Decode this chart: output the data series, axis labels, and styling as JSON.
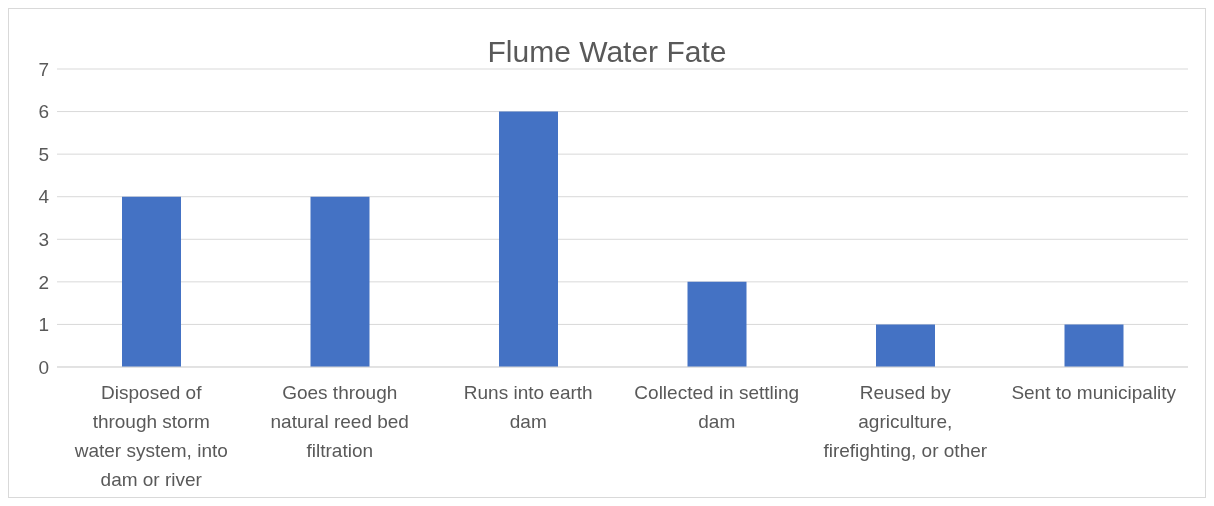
{
  "chart_data": {
    "type": "bar",
    "title": "Flume Water Fate",
    "categories": [
      "Disposed of through storm water system, into dam or river",
      "Goes through natural reed bed filtration",
      "Runs into earth dam",
      "Collected in settling dam",
      "Reused by agriculture, firefighting, or other",
      "Sent to municipality"
    ],
    "values": [
      4,
      4,
      6,
      2,
      1,
      1
    ],
    "color": "#4472c4",
    "ylim": [
      0,
      7
    ],
    "yticks": [
      0,
      1,
      2,
      3,
      4,
      5,
      6,
      7
    ],
    "grid": "y",
    "legend": false
  }
}
